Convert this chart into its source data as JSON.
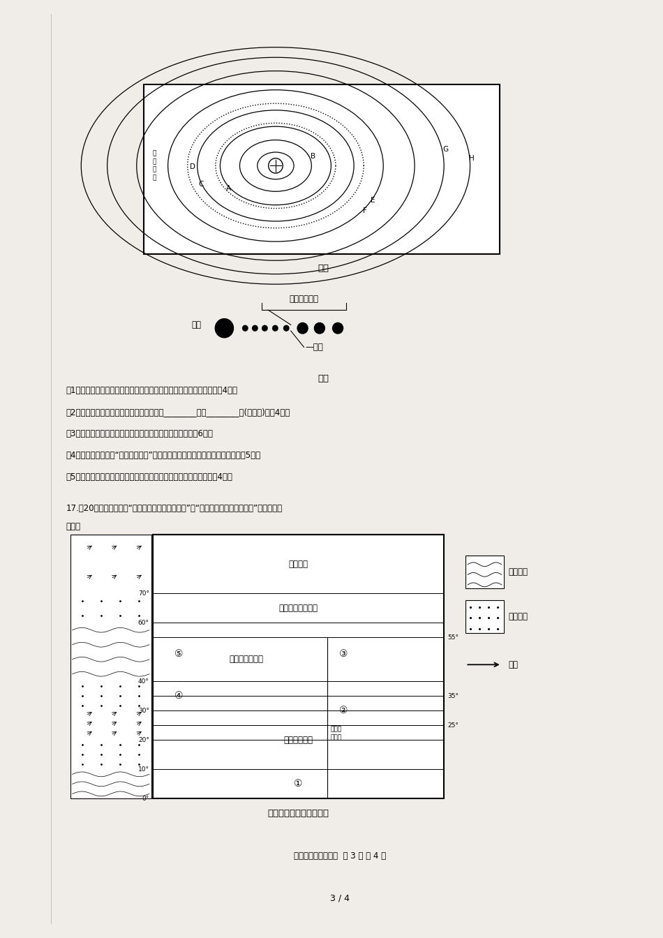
{
  "page_bg": "#f0ede8",
  "content_bg": "white",
  "fig1_title": "甲图",
  "fig2_title": "乙图",
  "fig3_title": "世界气候类型分布模式图",
  "q16_1": "（1）甲图中表示地球的字母是哪个？与地球距离最近的恒星是什么？（4分）",
  "q16_2": "（2）地球轨道内、外两侧轨道上分别运行着________星和________星(填名称)。（4分）",
  "q16_3": "（3）概括甲图中的太阳系八大行星绕日公转的共同特点。（6分）",
  "q16_4": "（4）指出乙图中显示“生命可居住带”出现生命的主要影响因素，并说明理由。（5分）",
  "q16_5": "（5）除乙图所述因素外，请说出地球上存在生命的自身有利条件。（4分）",
  "q17_header": "17.（20分）下面两图为“世界气候类型分布模式图”和“气温曲线和降水量柱状图”，读图回答",
  "q17_header2": "问题。",
  "footer": "高一级地理期中试卷  第 3 页 共 4 页",
  "page_indicator": "3 / 4",
  "legend_low": "低气压带",
  "legend_high": "高气压带",
  "legend_wind": "风向",
  "zone_polar": "极地气候",
  "zone_subarctic": "亚寒带大陆性气候",
  "zone_temperate": "温带大陆性气候",
  "zone_savanna": "热带草原气候",
  "zone_monsoon1": "热带季",
  "zone_monsoon2": "风气候",
  "zone_circle1": "①",
  "zone_circle2": "②",
  "zone_circle3": "③",
  "zone_circle4": "④",
  "zone_circle5": "⑤",
  "small_asteroid": [
    "小",
    "行",
    "星",
    "带"
  ],
  "taiyang": "太阳",
  "shengming": "生命可居住带",
  "diqiu": "地球"
}
